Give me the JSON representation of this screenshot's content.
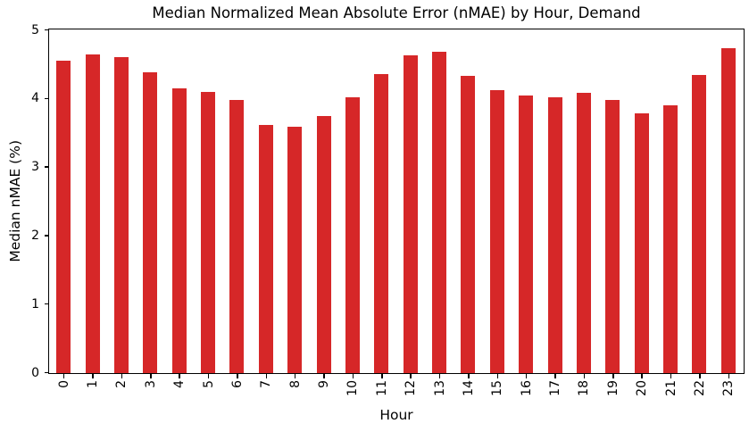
{
  "chart_data": {
    "type": "bar",
    "title": "Median Normalized Mean Absolute Error (nMAE) by Hour, Demand",
    "xlabel": "Hour",
    "ylabel": "Median nMAE (%)",
    "categories": [
      "0",
      "1",
      "2",
      "3",
      "4",
      "5",
      "6",
      "7",
      "8",
      "9",
      "10",
      "11",
      "12",
      "13",
      "14",
      "15",
      "16",
      "17",
      "18",
      "19",
      "20",
      "21",
      "22",
      "23"
    ],
    "values": [
      4.56,
      4.65,
      4.61,
      4.39,
      4.16,
      4.1,
      3.98,
      3.62,
      3.6,
      3.75,
      4.03,
      4.36,
      4.64,
      4.69,
      4.34,
      4.13,
      4.05,
      4.03,
      4.09,
      3.98,
      3.79,
      3.91,
      4.35,
      4.74
    ],
    "ylim": [
      0,
      5
    ],
    "yticks": [
      0,
      1,
      2,
      3,
      4,
      5
    ],
    "bar_color": "#d62728",
    "background_color": "#ffffff",
    "spine_color": "#000000",
    "grid": false,
    "legend": null,
    "x_tick_rotation": 90
  }
}
